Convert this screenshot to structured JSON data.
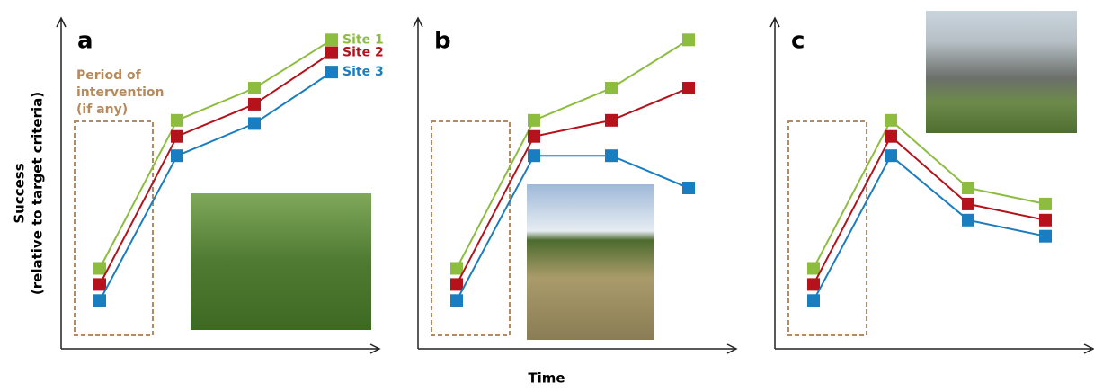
{
  "chart_data": [
    {
      "type": "line",
      "panel_label": "a",
      "categories": [
        null,
        null,
        null,
        null
      ],
      "ylim": [
        0,
        100
      ],
      "series": [
        {
          "name": "Site 1",
          "color": "#8cbd3f",
          "values": [
            25,
            71,
            81,
            96
          ]
        },
        {
          "name": "Site 2",
          "color": "#b5121b",
          "values": [
            20,
            66,
            76,
            92
          ]
        },
        {
          "name": "Site 3",
          "color": "#1a7dc0",
          "values": [
            15,
            60,
            70,
            86
          ]
        }
      ]
    },
    {
      "type": "line",
      "panel_label": "b",
      "categories": [
        null,
        null,
        null,
        null
      ],
      "ylim": [
        0,
        100
      ],
      "series": [
        {
          "color": "#8cbd3f",
          "values": [
            25,
            71,
            81,
            96
          ]
        },
        {
          "color": "#b5121b",
          "values": [
            20,
            66,
            71,
            81
          ]
        },
        {
          "color": "#1a7dc0",
          "values": [
            15,
            60,
            60,
            50
          ]
        }
      ]
    },
    {
      "type": "line",
      "panel_label": "c",
      "categories": [
        null,
        null,
        null,
        null
      ],
      "ylim": [
        0,
        100
      ],
      "series": [
        {
          "color": "#8cbd3f",
          "values": [
            25,
            71,
            50,
            45
          ]
        },
        {
          "color": "#b5121b",
          "values": [
            20,
            66,
            45,
            40
          ]
        },
        {
          "color": "#1a7dc0",
          "values": [
            15,
            60,
            40,
            35
          ]
        }
      ]
    }
  ],
  "y_axis_label": [
    "Success",
    "(relative to target criteria)"
  ],
  "x_axis_label": "Time",
  "annotation": [
    "Period of",
    "intervention",
    "(if any)"
  ]
}
